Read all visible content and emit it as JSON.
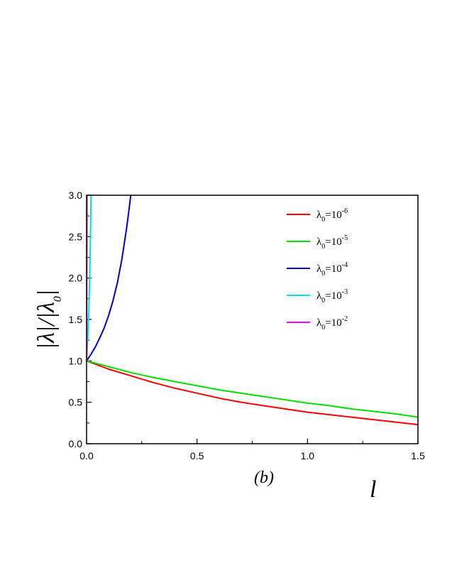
{
  "chart_data": {
    "type": "line",
    "panel_label": "(b)",
    "xlabel": "l",
    "ylabel": "|λ|/|λ₀|",
    "ylabel_main": "|λ|/|λ",
    "ylabel_sub": "0",
    "xlim": [
      0,
      1.5
    ],
    "ylim": [
      0,
      3.0
    ],
    "x_ticks": [
      "0.0",
      "0.5",
      "1.0",
      "1.5"
    ],
    "y_ticks": [
      "0.0",
      "0.5",
      "1.0",
      "1.5",
      "2.0",
      "2.5",
      "3.0"
    ],
    "legend_position": "top-right",
    "series": [
      {
        "name": "λ0=10-6",
        "label_base": "λ",
        "label_sub": "0",
        "label_mid": "=10",
        "label_sup": "-6",
        "color": "#ff0000",
        "x": [
          0,
          0.1,
          0.2,
          0.3,
          0.4,
          0.5,
          0.6,
          0.7,
          0.8,
          0.9,
          1.0,
          1.1,
          1.2,
          1.3,
          1.4,
          1.5
        ],
        "y": [
          1.0,
          0.9,
          0.82,
          0.74,
          0.67,
          0.61,
          0.55,
          0.5,
          0.46,
          0.42,
          0.38,
          0.35,
          0.32,
          0.29,
          0.26,
          0.23
        ]
      },
      {
        "name": "λ0=10-5",
        "label_base": "λ",
        "label_sub": "0",
        "label_mid": "=10",
        "label_sup": "-5",
        "color": "#00e000",
        "x": [
          0,
          0.1,
          0.2,
          0.3,
          0.4,
          0.5,
          0.6,
          0.7,
          0.8,
          0.9,
          1.0,
          1.1,
          1.2,
          1.3,
          1.4,
          1.5
        ],
        "y": [
          1.0,
          0.93,
          0.86,
          0.8,
          0.75,
          0.7,
          0.65,
          0.61,
          0.57,
          0.53,
          0.49,
          0.46,
          0.42,
          0.39,
          0.36,
          0.32
        ]
      },
      {
        "name": "λ0=10-4",
        "label_base": "λ",
        "label_sub": "0",
        "label_mid": "=10",
        "label_sup": "-4",
        "color": "#0000cc",
        "x": [
          0,
          0.02,
          0.04,
          0.06,
          0.08,
          0.1,
          0.12,
          0.14,
          0.16,
          0.18,
          0.19,
          0.2
        ],
        "y": [
          1.0,
          1.08,
          1.17,
          1.28,
          1.4,
          1.55,
          1.73,
          1.95,
          2.23,
          2.58,
          2.78,
          3.0
        ]
      },
      {
        "name": "λ0=10-3",
        "label_base": "λ",
        "label_sub": "0",
        "label_mid": "=10",
        "label_sup": "-3",
        "color": "#00e0e0",
        "x": [
          0,
          0.005,
          0.01,
          0.015,
          0.018,
          0.02
        ],
        "y": [
          1.0,
          1.25,
          1.6,
          2.1,
          2.55,
          3.0
        ]
      },
      {
        "name": "λ0=10-2",
        "label_base": "λ",
        "label_sub": "0",
        "label_mid": "=10",
        "label_sup": "-2",
        "color": "#ff00ff",
        "x": [
          0,
          0.0005,
          0.001,
          0.0015,
          0.002
        ],
        "y": [
          1.0,
          1.4,
          1.9,
          2.5,
          3.0
        ]
      }
    ]
  }
}
